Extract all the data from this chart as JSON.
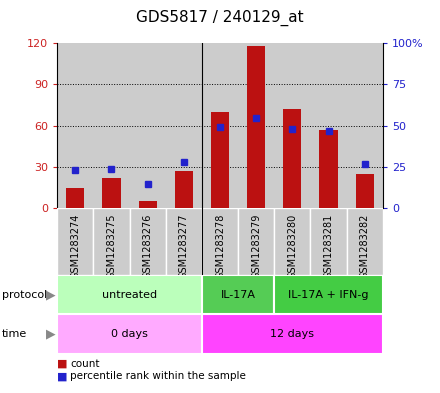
{
  "title": "GDS5817 / 240129_at",
  "samples": [
    "GSM1283274",
    "GSM1283275",
    "GSM1283276",
    "GSM1283277",
    "GSM1283278",
    "GSM1283279",
    "GSM1283280",
    "GSM1283281",
    "GSM1283282"
  ],
  "counts": [
    15,
    22,
    5,
    27,
    70,
    118,
    72,
    57,
    25
  ],
  "percentiles": [
    23,
    24,
    15,
    28,
    49,
    55,
    48,
    47,
    27
  ],
  "ylim_left": [
    0,
    120
  ],
  "ylim_right": [
    0,
    100
  ],
  "yticks_left": [
    0,
    30,
    60,
    90,
    120
  ],
  "yticks_right": [
    0,
    25,
    50,
    75,
    100
  ],
  "ytick_labels_left": [
    "0",
    "30",
    "60",
    "90",
    "120"
  ],
  "ytick_labels_right": [
    "0",
    "25",
    "50",
    "75",
    "100%"
  ],
  "bar_color": "#bb1111",
  "dot_color": "#2222cc",
  "panel_bg": "#cccccc",
  "bg_color": "#ffffff",
  "sep_line_color": "#000000",
  "proto_segs": [
    {
      "start": 0,
      "end": 3,
      "color": "#bbffbb",
      "label": "untreated"
    },
    {
      "start": 4,
      "end": 5,
      "color": "#55cc55",
      "label": "IL-17A"
    },
    {
      "start": 6,
      "end": 8,
      "color": "#44cc44",
      "label": "IL-17A + IFN-g"
    }
  ],
  "time_segs": [
    {
      "start": 0,
      "end": 3,
      "color": "#ffaaff",
      "label": "0 days"
    },
    {
      "start": 4,
      "end": 8,
      "color": "#ff44ff",
      "label": "12 days"
    }
  ],
  "protocol_label": "protocol",
  "time_label": "time",
  "legend_count_label": "count",
  "legend_pct_label": "percentile rank within the sample",
  "arrow_color": "#888888",
  "title_fontsize": 11,
  "tick_fontsize": 8,
  "label_fontsize": 8,
  "sample_fontsize": 7
}
